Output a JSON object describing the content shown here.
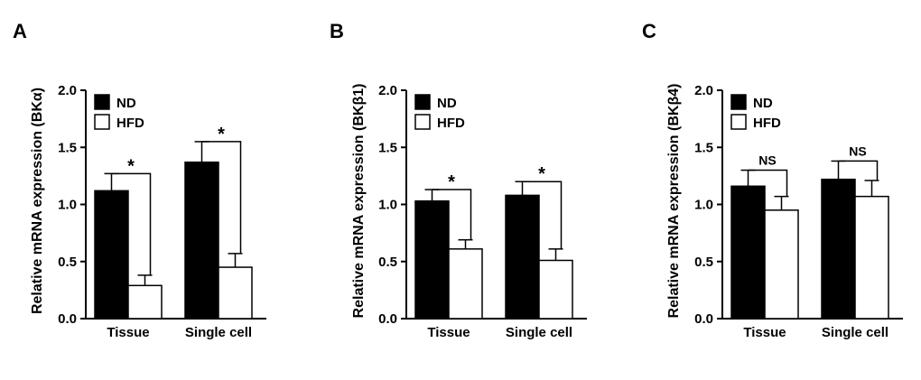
{
  "chart_data": [
    {
      "type": "bar",
      "panel": "A",
      "title": "",
      "xlabel": "",
      "ylabel": "Relative mRNA expression (BKα)",
      "ylim": [
        0,
        2.0
      ],
      "yticks": [
        "0.0",
        "0.5",
        "1.0",
        "1.5",
        "2.0"
      ],
      "categories": [
        "Tissue",
        "Single cell"
      ],
      "legend_position": "top-left",
      "series": [
        {
          "name": "ND",
          "color": "#000000",
          "values": [
            1.12,
            1.37
          ],
          "errors": [
            0.15,
            0.18
          ]
        },
        {
          "name": "HFD",
          "color": "#ffffff",
          "values": [
            0.29,
            0.45
          ],
          "errors": [
            0.09,
            0.12
          ]
        }
      ],
      "annotations": [
        "*",
        "*"
      ]
    },
    {
      "type": "bar",
      "panel": "B",
      "title": "",
      "xlabel": "",
      "ylabel": "Relative mRNA expression (BKβ1)",
      "ylim": [
        0,
        2.0
      ],
      "yticks": [
        "0.0",
        "0.5",
        "1.0",
        "1.5",
        "2.0"
      ],
      "categories": [
        "Tissue",
        "Single cell"
      ],
      "legend_position": "top-left",
      "series": [
        {
          "name": "ND",
          "color": "#000000",
          "values": [
            1.03,
            1.08
          ],
          "errors": [
            0.1,
            0.12
          ]
        },
        {
          "name": "HFD",
          "color": "#ffffff",
          "values": [
            0.61,
            0.51
          ],
          "errors": [
            0.08,
            0.1
          ]
        }
      ],
      "annotations": [
        "*",
        "*"
      ]
    },
    {
      "type": "bar",
      "panel": "C",
      "title": "",
      "xlabel": "",
      "ylabel": "Relative mRNA expression (BKβ4)",
      "ylim": [
        0,
        2.0
      ],
      "yticks": [
        "0.0",
        "0.5",
        "1.0",
        "1.5",
        "2.0"
      ],
      "categories": [
        "Tissue",
        "Single cell"
      ],
      "legend_position": "top-left",
      "series": [
        {
          "name": "ND",
          "color": "#000000",
          "values": [
            1.16,
            1.22
          ],
          "errors": [
            0.14,
            0.16
          ]
        },
        {
          "name": "HFD",
          "color": "#ffffff",
          "values": [
            0.95,
            1.07
          ],
          "errors": [
            0.12,
            0.14
          ]
        }
      ],
      "annotations": [
        "NS",
        "NS"
      ]
    }
  ]
}
